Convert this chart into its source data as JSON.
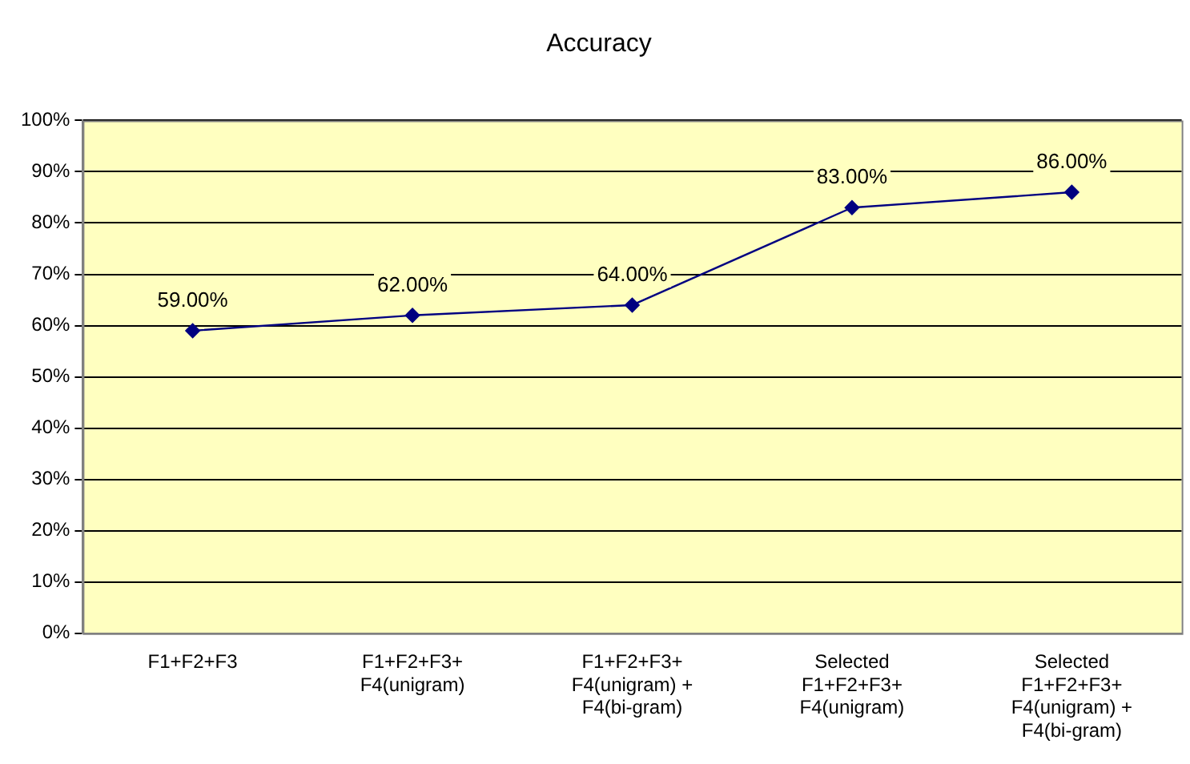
{
  "chart_data": {
    "type": "line",
    "title": "Accuracy",
    "categories": [
      "F1+F2+F3",
      "F1+F2+F3+\nF4(unigram)",
      "F1+F2+F3+\nF4(unigram) +\nF4(bi-gram)",
      "Selected\nF1+F2+F3+\nF4(unigram)",
      "Selected\nF1+F2+F3+\nF4(unigram) +\nF4(bi-gram)"
    ],
    "series": [
      {
        "color": "#000080",
        "values": [
          59,
          62,
          64,
          83,
          86
        ],
        "value_labels": [
          "59.00%",
          "62.00%",
          "64.00%",
          "83.00%",
          "86.00%"
        ]
      }
    ],
    "ylim": [
      0,
      100
    ],
    "yticks": [
      {
        "value": 0,
        "label": "0%"
      },
      {
        "value": 10,
        "label": "10%"
      },
      {
        "value": 20,
        "label": "20%"
      },
      {
        "value": 30,
        "label": "30%"
      },
      {
        "value": 40,
        "label": "40%"
      },
      {
        "value": 50,
        "label": "50%"
      },
      {
        "value": 60,
        "label": "60%"
      },
      {
        "value": 70,
        "label": "70%"
      },
      {
        "value": 80,
        "label": "80%"
      },
      {
        "value": 90,
        "label": "90%"
      },
      {
        "value": 100,
        "label": "100%"
      }
    ],
    "grid": "y",
    "legend": false,
    "marker": "diamond",
    "line_style": "solid"
  }
}
